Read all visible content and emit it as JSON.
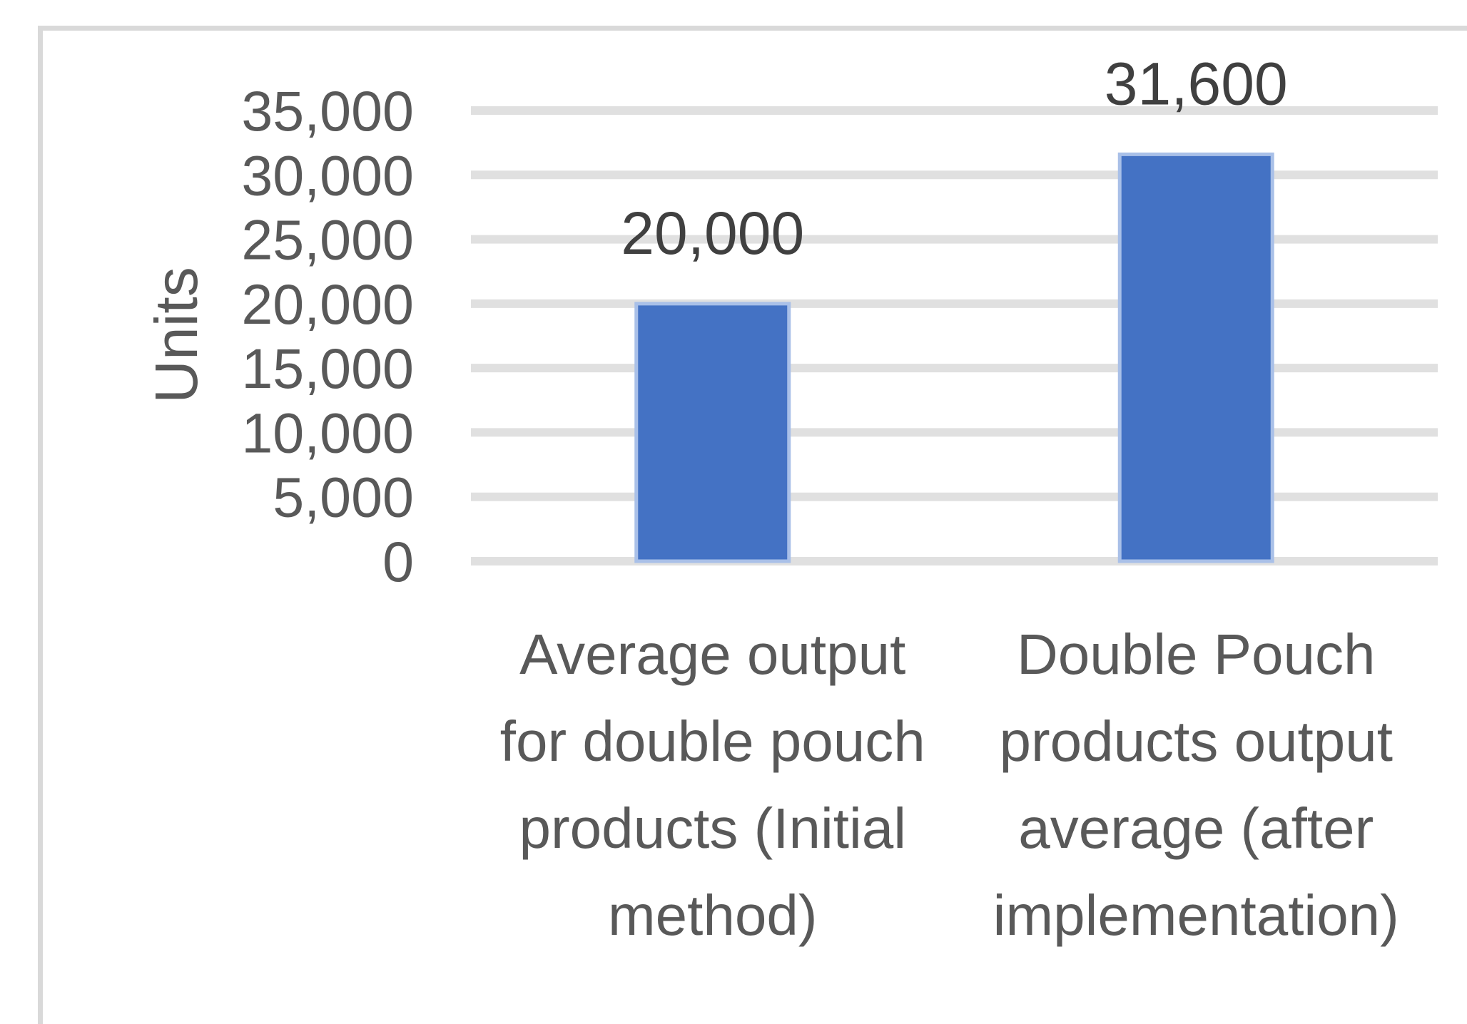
{
  "chart_data": {
    "type": "bar",
    "title": "",
    "xlabel": "",
    "ylabel": "Units",
    "categories": [
      [
        "Average output",
        "for double pouch",
        "products (Initial",
        "method)"
      ],
      [
        "Double Pouch",
        "products output",
        "average (after",
        "implementation)"
      ]
    ],
    "values": [
      20000,
      31600
    ],
    "data_labels": [
      "20,000",
      "31,600"
    ],
    "ylim": [
      0,
      35000
    ],
    "yticks": [
      0,
      5000,
      10000,
      15000,
      20000,
      25000,
      30000,
      35000
    ],
    "ytick_labels": [
      "0",
      "5,000",
      "10,000",
      "15,000",
      "20,000",
      "25,000",
      "30,000",
      "35,000"
    ],
    "grid": true,
    "legend": "none",
    "colors": {
      "bar": "#4472c4",
      "bar_edge": "#a9c0e8",
      "grid": "#e0e0e0",
      "text": "#595959"
    }
  }
}
